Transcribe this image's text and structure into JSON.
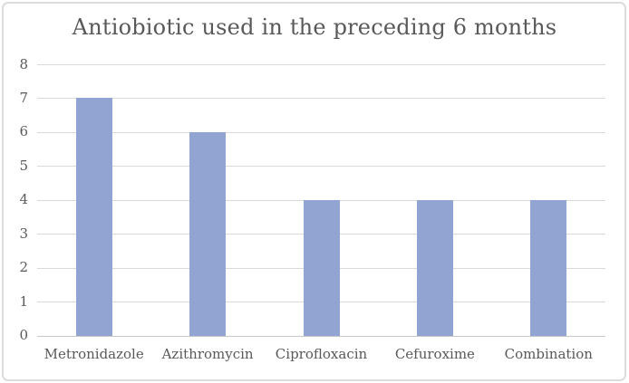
{
  "chart_data": {
    "type": "bar",
    "title": "Antiobiotic used in the preceding 6 months",
    "categories": [
      "Metronidazole",
      "Azithromycin",
      "Ciprofloxacin",
      "Cefuroxime",
      "Combination"
    ],
    "values": [
      7,
      6,
      4,
      4,
      4
    ],
    "series": [
      {
        "name": "Antiobiotic used in the preceding 6 months",
        "values": [
          7,
          6,
          4,
          4,
          4
        ]
      }
    ],
    "xlabel": "",
    "ylabel": "",
    "ylim": [
      0,
      8
    ],
    "yticks": [
      0,
      1,
      2,
      3,
      4,
      5,
      6,
      7,
      8
    ],
    "grid": true,
    "legend": false,
    "colors": {
      "bar": "#92A5D2",
      "gridline": "#D9D9D9",
      "axis_line": "#C8C8C8",
      "text": "#595959",
      "frame_border": "#DCDCDC",
      "background": "#FFFFFF"
    }
  }
}
